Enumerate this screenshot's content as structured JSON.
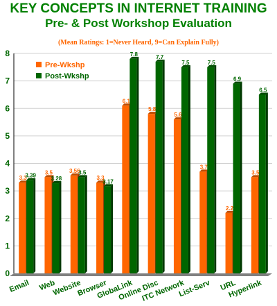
{
  "title_line1": "KEY CONCEPTS IN INTERNET TRAINING",
  "title_line2": "Pre- & Post Workshop Evaluation",
  "subtitle": "(Mean Ratings: 1=Never Heard, 9=Can Explain Fully)",
  "colors": {
    "title": "#008000",
    "subtitle": "#ff6600",
    "pre": "#ff6600",
    "post": "#006600",
    "axis_text": "#006600",
    "grid": "#d0d0d0",
    "floor": "#808080"
  },
  "chart_data": {
    "type": "bar",
    "title": "KEY CONCEPTS IN INTERNET TRAINING",
    "subtitle": "Pre- & Post Workshop Evaluation",
    "categories": [
      "Email",
      "Web",
      "Website",
      "Browser",
      "GlobaLink",
      "Online Disc",
      "ITC Network",
      "List-Serv",
      "URL",
      "Hyperlink"
    ],
    "series": [
      {
        "name": "Pre-Wkshp",
        "values": [
          3.3,
          3.5,
          3.56,
          3.3,
          6.1,
          5.8,
          5.6,
          3.7,
          2.2,
          3.5
        ],
        "labels": [
          "3.3",
          "3.5",
          "3.56",
          "3.3",
          "6.1",
          "5.8",
          "5.6",
          "3.7",
          "2.2",
          "3.5"
        ]
      },
      {
        "name": "Post-Wkshp",
        "values": [
          3.39,
          3.28,
          3.5,
          3.17,
          7.8,
          7.7,
          7.5,
          7.5,
          6.9,
          6.5
        ],
        "labels": [
          "3.39",
          "3.28",
          "3.5",
          "3.17",
          "7.8",
          "7.7",
          "7.5",
          "7.5",
          "6.9",
          "6.5"
        ]
      }
    ],
    "ylim": [
      0,
      8
    ],
    "yticks": [
      "0",
      "1",
      "2",
      "3",
      "4",
      "5",
      "6",
      "7",
      "8"
    ],
    "grid": true,
    "legend_position": "top-left"
  }
}
